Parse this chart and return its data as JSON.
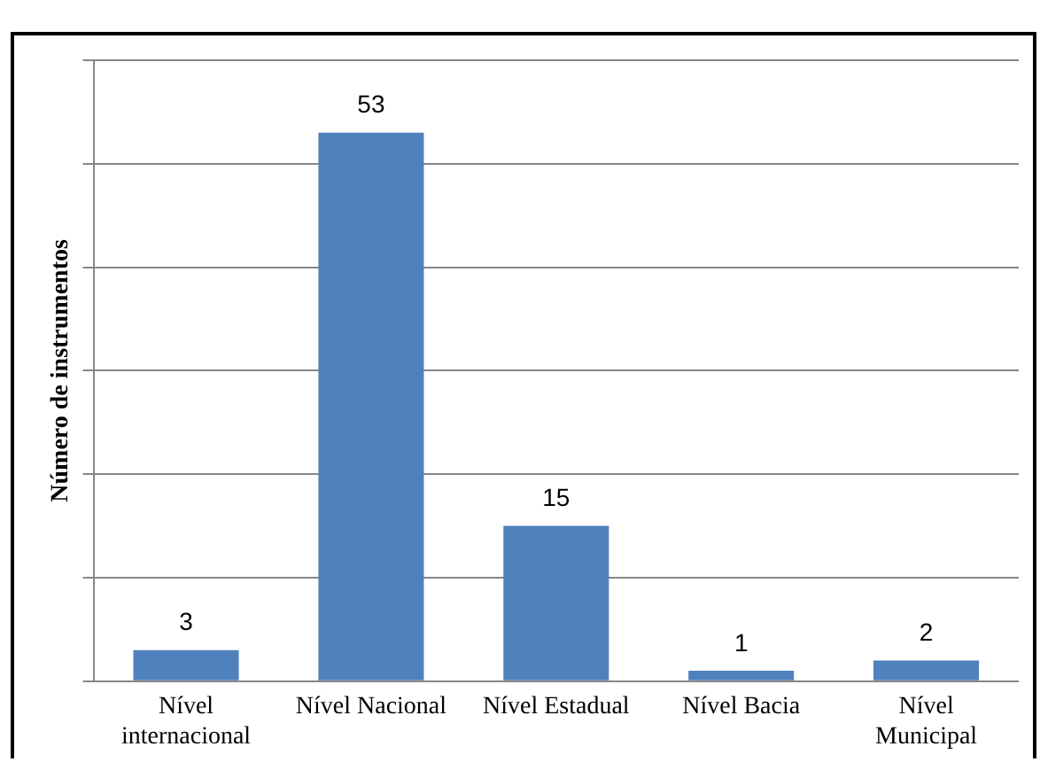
{
  "chart_data": {
    "type": "bar",
    "ylabel": "Número de instrumentos",
    "categories": [
      "Nível internacional",
      "Nível Nacional",
      "Nível Estadual",
      "Nível Bacia",
      "Nível Municipal"
    ],
    "values": [
      3,
      53,
      15,
      1,
      2
    ],
    "color": "#4f81bd",
    "ylim": [
      0,
      60
    ],
    "yticks": [
      {
        "value": 0,
        "label": null
      },
      {
        "value": 10,
        "label": null
      },
      {
        "value": 20,
        "label": null
      },
      {
        "value": 30,
        "label": null
      },
      {
        "value": 40,
        "label": null
      },
      {
        "value": 50,
        "label": null
      },
      {
        "value": 60,
        "label": null
      }
    ],
    "grid": "y",
    "legend": false,
    "data_labels": true,
    "tick_labels": "x"
  }
}
